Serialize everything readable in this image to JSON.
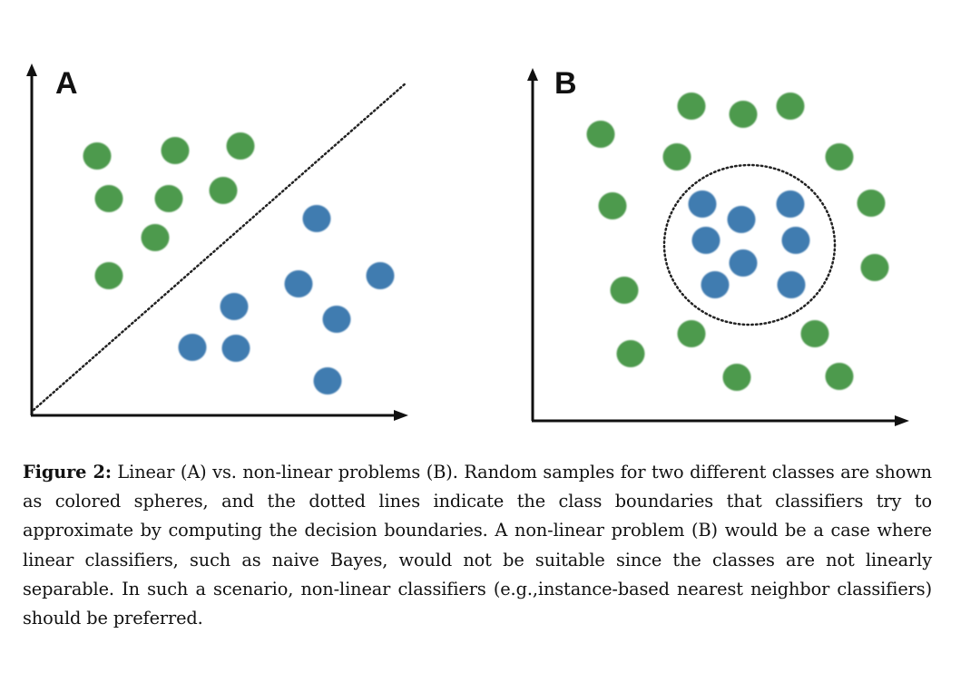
{
  "figure": {
    "panels": [
      {
        "label": "A",
        "boundary": "dotted diagonal line"
      },
      {
        "label": "B",
        "boundary": "dotted circle"
      }
    ],
    "colors": {
      "class_green": "#4e9a4e",
      "class_blue": "#3f7bb0",
      "axis": "#111111"
    }
  },
  "caption": {
    "label": "Figure 2:",
    "text": " Linear (A) vs. non-linear problems (B). Random samples for two different classes are shown as colored spheres, and the dotted lines indicate the class boundaries that classifiers try to approximate by computing the decision boundaries. A non-linear problem (B) would be a case where linear classifiers, such as naive Bayes, would not be suitable since the classes are not linearly separable. In such a scenario, non-linear classifiers (e.g.,instance-based nearest neighbor classifiers) should be preferred."
  }
}
